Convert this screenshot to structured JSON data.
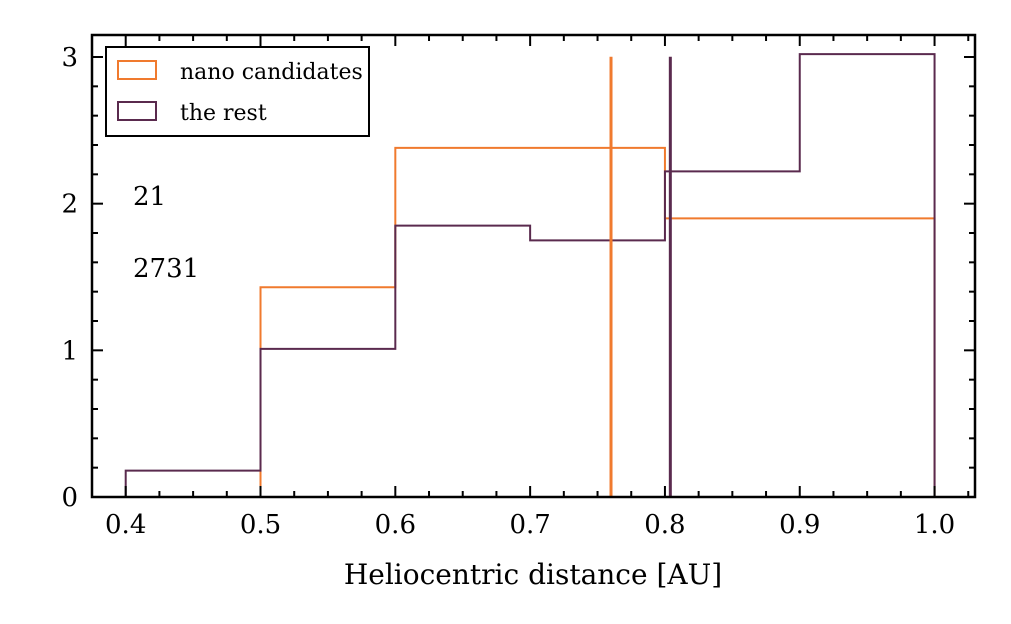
{
  "chart_data": {
    "type": "histogram",
    "xlabel": "Heliocentric distance [AU]",
    "ylabel": "",
    "xlim": [
      0.375,
      1.03
    ],
    "ylim": [
      0,
      3.15
    ],
    "x_ticks": [
      0.4,
      0.5,
      0.6,
      0.7,
      0.8,
      0.9,
      1.0
    ],
    "x_tick_labels": [
      "0.4",
      "0.5",
      "0.6",
      "0.7",
      "0.8",
      "0.9",
      "1.0"
    ],
    "y_ticks": [
      0,
      1,
      2,
      3
    ],
    "y_tick_labels": [
      "0",
      "1",
      "2",
      "3"
    ],
    "legend_position": "top-left",
    "series": [
      {
        "name": "nano candidates",
        "color": "#f07a2e",
        "edges": [
          0.4,
          0.5,
          0.6,
          0.8,
          1.0
        ],
        "values": [
          0.0,
          1.43,
          2.38,
          1.9
        ],
        "median": 0.76,
        "count_label": "21"
      },
      {
        "name": "the rest",
        "color": "#5a2a4e",
        "edges": [
          0.4,
          0.5,
          0.6,
          0.7,
          0.8,
          0.9,
          1.0
        ],
        "values": [
          0.18,
          1.01,
          1.85,
          1.75,
          2.22,
          3.02
        ],
        "median": 0.804,
        "count_label": "2731"
      }
    ]
  }
}
